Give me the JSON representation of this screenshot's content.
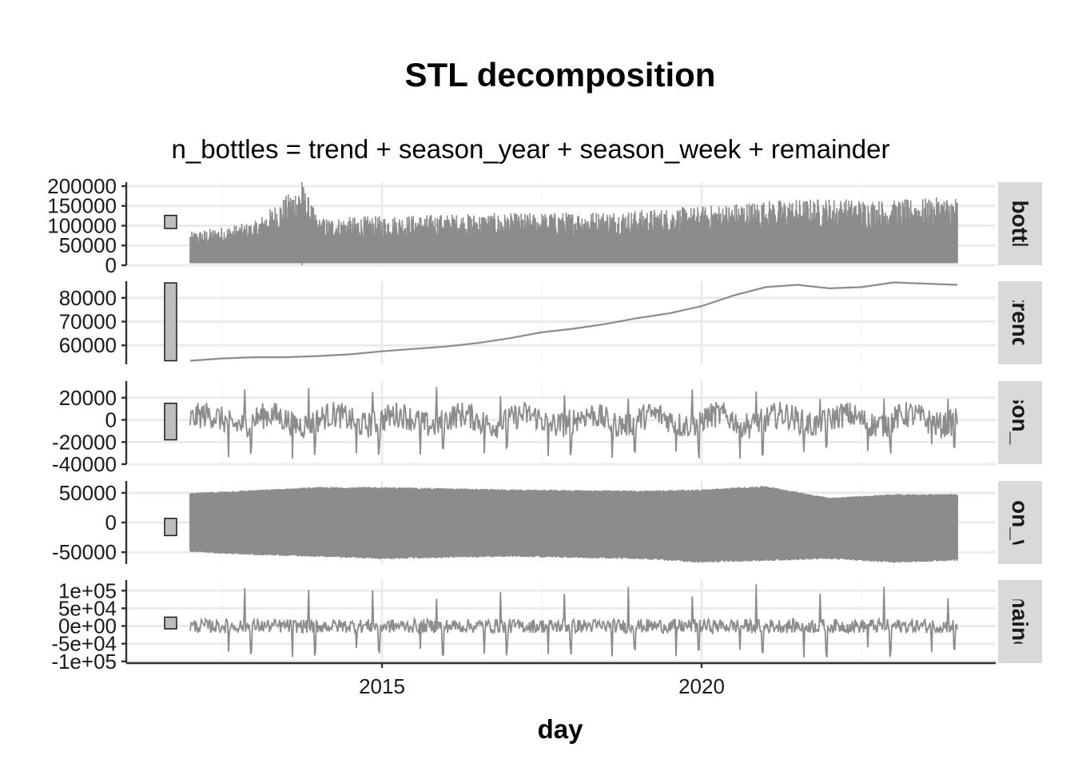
{
  "chart_data": {
    "type": "line",
    "title": "STL decomposition",
    "subtitle": "n_bottles = trend + season_year + season_week + remainder",
    "xlabel": "day",
    "x_ticks": [
      "2015",
      "2020"
    ],
    "x_range": [
      2011.0,
      2024.6
    ],
    "series_color": "#8c8c8c",
    "scale_bar_color": "#bdbdbd",
    "grid": true,
    "panels": [
      {
        "name": "n_bottles",
        "strip_label": "n_bottles",
        "ylim": [
          0,
          210000
        ],
        "yticks": [
          0,
          50000,
          100000,
          150000,
          200000
        ],
        "ytick_labels": [
          "0",
          "50000",
          "100000",
          "150000",
          "200000"
        ],
        "style": "spiky",
        "scale_bar": [
          93000,
          126000
        ],
        "values": [
          {
            "x": 2012.0,
            "low": 5000,
            "high": 85000
          },
          {
            "x": 2013.0,
            "low": 5000,
            "high": 110000
          },
          {
            "x": 2013.75,
            "low": 5000,
            "high": 210000
          },
          {
            "x": 2014.0,
            "low": 5000,
            "high": 120000
          },
          {
            "x": 2015.0,
            "low": 5000,
            "high": 125000
          },
          {
            "x": 2016.0,
            "low": 5000,
            "high": 130000
          },
          {
            "x": 2017.0,
            "low": 5000,
            "high": 132000
          },
          {
            "x": 2018.0,
            "low": 5000,
            "high": 135000
          },
          {
            "x": 2019.0,
            "low": 5000,
            "high": 140000
          },
          {
            "x": 2020.0,
            "low": 5000,
            "high": 150000
          },
          {
            "x": 2021.0,
            "low": 5000,
            "high": 165000
          },
          {
            "x": 2022.0,
            "low": 5000,
            "high": 170000
          },
          {
            "x": 2023.0,
            "low": 5000,
            "high": 165000
          },
          {
            "x": 2024.0,
            "low": 5000,
            "high": 175000
          }
        ]
      },
      {
        "name": "trend",
        "strip_label": "trend",
        "ylim": [
          52000,
          87000
        ],
        "yticks": [
          60000,
          70000,
          80000
        ],
        "ytick_labels": [
          "60000",
          "70000",
          "80000"
        ],
        "style": "line",
        "scale_bar": [
          53500,
          86300
        ],
        "values": [
          {
            "x": 2012.0,
            "y": 53500
          },
          {
            "x": 2012.5,
            "y": 54500
          },
          {
            "x": 2013.0,
            "y": 55000
          },
          {
            "x": 2013.5,
            "y": 55000
          },
          {
            "x": 2014.0,
            "y": 55500
          },
          {
            "x": 2014.5,
            "y": 56200
          },
          {
            "x": 2015.0,
            "y": 57500
          },
          {
            "x": 2015.5,
            "y": 58500
          },
          {
            "x": 2016.0,
            "y": 59500
          },
          {
            "x": 2016.5,
            "y": 61000
          },
          {
            "x": 2017.0,
            "y": 63000
          },
          {
            "x": 2017.5,
            "y": 65500
          },
          {
            "x": 2018.0,
            "y": 67000
          },
          {
            "x": 2018.5,
            "y": 69000
          },
          {
            "x": 2019.0,
            "y": 71500
          },
          {
            "x": 2019.5,
            "y": 73500
          },
          {
            "x": 2020.0,
            "y": 76500
          },
          {
            "x": 2020.5,
            "y": 81000
          },
          {
            "x": 2021.0,
            "y": 84500
          },
          {
            "x": 2021.5,
            "y": 85500
          },
          {
            "x": 2022.0,
            "y": 84000
          },
          {
            "x": 2022.5,
            "y": 84500
          },
          {
            "x": 2023.0,
            "y": 86500
          },
          {
            "x": 2023.5,
            "y": 86000
          },
          {
            "x": 2024.0,
            "y": 85500
          }
        ]
      },
      {
        "name": "season_year",
        "strip_label": "season_year",
        "ylim": [
          -40000,
          35000
        ],
        "yticks": [
          -40000,
          -20000,
          0,
          20000
        ],
        "ytick_labels": [
          "-40000",
          "-20000",
          "0",
          "20000"
        ],
        "style": "seasonal",
        "scale_bar": [
          -18000,
          15000
        ],
        "amplitude": 12000,
        "spike_down": -35000,
        "spike_up": 30000
      },
      {
        "name": "season_week",
        "strip_label": "season_week",
        "ylim": [
          -70000,
          70000
        ],
        "yticks": [
          -50000,
          0,
          50000
        ],
        "ytick_labels": [
          "-50000",
          "0",
          "50000"
        ],
        "style": "band",
        "scale_bar": [
          -22000,
          7000
        ],
        "values": [
          {
            "x": 2012.0,
            "low": -50000,
            "high": 50000
          },
          {
            "x": 2013.0,
            "low": -55000,
            "high": 55000
          },
          {
            "x": 2014.0,
            "low": -58000,
            "high": 60000
          },
          {
            "x": 2015.0,
            "low": -62000,
            "high": 60000
          },
          {
            "x": 2016.0,
            "low": -60000,
            "high": 58000
          },
          {
            "x": 2017.0,
            "low": -58000,
            "high": 56000
          },
          {
            "x": 2018.0,
            "low": -60000,
            "high": 55000
          },
          {
            "x": 2019.0,
            "low": -62000,
            "high": 54000
          },
          {
            "x": 2020.0,
            "low": -68000,
            "high": 56000
          },
          {
            "x": 2021.0,
            "low": -65000,
            "high": 62000
          },
          {
            "x": 2022.0,
            "low": -62000,
            "high": 42000
          },
          {
            "x": 2023.0,
            "low": -68000,
            "high": 48000
          },
          {
            "x": 2024.0,
            "low": -65000,
            "high": 48000
          }
        ]
      },
      {
        "name": "remainder",
        "strip_label": "remainder",
        "ylim": [
          -105000,
          130000
        ],
        "yticks": [
          -100000,
          -50000,
          0,
          50000,
          100000
        ],
        "ytick_labels": [
          "-1e+05",
          "-5e+04",
          "0e+00",
          "5e+04",
          "1e+05"
        ],
        "style": "noise",
        "scale_bar": [
          -8000,
          25000
        ],
        "amplitude": 20000,
        "spike_down": -90000,
        "spike_up": 120000
      }
    ]
  }
}
